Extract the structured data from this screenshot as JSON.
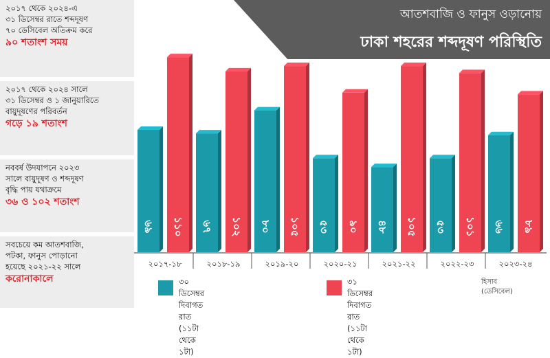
{
  "header": {
    "title_line1": "আতশবাজি ও ফানুস ওড়ানোয়",
    "title_line2": "ঢাকা শহরের শব্দদূষণ পরিস্থিতি"
  },
  "facts": [
    {
      "text": "২০১৭ থেকে ২০২৪-এ\n৩১ ডিসেম্বর রাতে শব্দদূষণ\n৭০ ডেসিবেল অতিক্রম করে",
      "highlight": "৯০ শতাংশ সময়"
    },
    {
      "text": "২০১৭ থেকে ২০২৪ সালে\n৩১ ডিসেম্বর ও ১ জানুয়ারিতে\nবায়ুদূষণের পরিবর্তন",
      "highlight": "গড়ে ১৯ শতাংশ"
    },
    {
      "text": "নববর্ষ উদযাপনে ২০২৩\nসালে বায়ুদূষণ ও শব্দদূষণ\nবৃদ্ধি পায় যথাক্রমে",
      "highlight": "৩৬ ও ১০২ শতাংশ"
    },
    {
      "text": "সবচেয়ে কম আতশবাজি,\nপটকা, ফানুস পোড়ানো\nহয়েছে ২০২১-২২ সালে",
      "highlight": "করোনাকালে"
    }
  ],
  "legend": {
    "series1": "৩০ ডিসেম্বর দিবাগত রাত\n(১১টা থেকে ১টা)",
    "series2": "৩১ ডিসেম্বর দিবাগত রাত\n(১১টা থেকে ১টা)",
    "unit": "হিসাব\n(ডেসিবেল)"
  },
  "colors": {
    "series1": "#1b9aaa",
    "series2": "#ef4452",
    "highlight": "#e6242b",
    "banner": "#5c5c5c",
    "panel": "#ededed"
  },
  "chart_data": {
    "type": "bar",
    "categories": [
      "২০১৭-১৮",
      "২০১৮-১৯",
      "২০১৯-২০",
      "২০২০-২১",
      "২০২১-২২",
      "২০২২-২৩",
      "২০২৩-২৪"
    ],
    "series": [
      {
        "name": "৩০ ডিসেম্বর দিবাগত রাত (১১টা থেকে ১টা)",
        "values": [
          69,
          67,
          80,
          53,
          48,
          53,
          66
        ],
        "labels": [
          "৬৯",
          "৬৭",
          "৮০",
          "৫৩",
          "৪৮",
          "৫৩",
          "৬৬"
        ]
      },
      {
        "name": "৩১ ডিসেম্বর দিবাগত রাত (১১টা থেকে ১টা)",
        "values": [
          110,
          102,
          105,
          90,
          105,
          101,
          89
        ],
        "labels": [
          "১১০",
          "১০২",
          "১০৫",
          "৯০",
          "১০৫",
          "১০১",
          "৮৯"
        ]
      }
    ],
    "ylabel": "হিসাব (ডেসিবেল)"
  }
}
